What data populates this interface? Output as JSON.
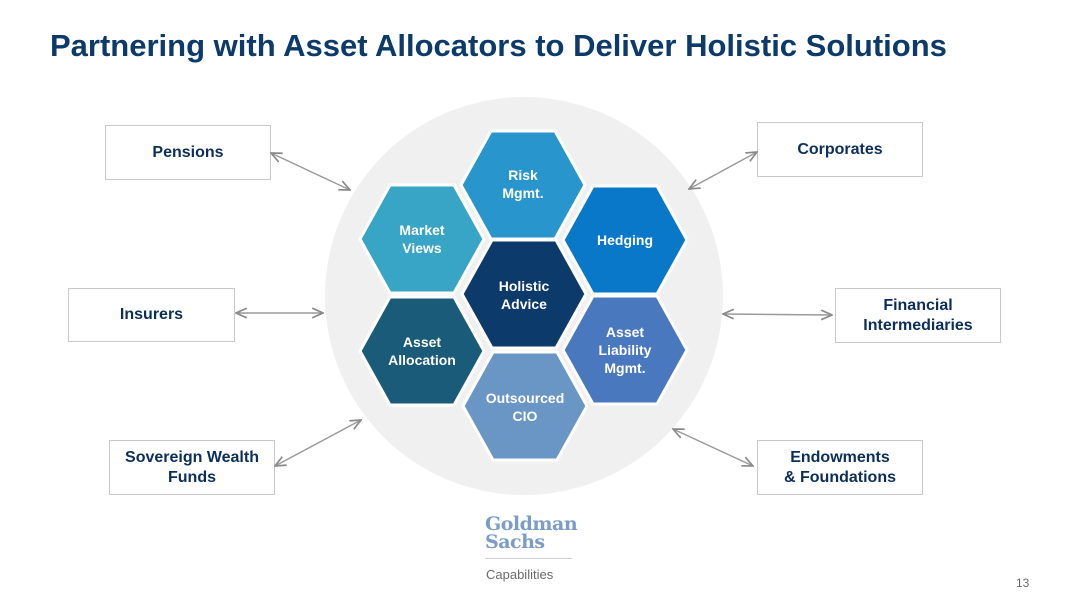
{
  "title": "Partnering with Asset Allocators to Deliver Holistic Solutions",
  "clients": {
    "pensions": "Pensions",
    "insurers": "Insurers",
    "sovereign_1": "Sovereign Wealth",
    "sovereign_2": "Funds",
    "corporates": "Corporates",
    "financial_1": "Financial",
    "financial_2": "Intermediaries",
    "endowments_1": "Endowments",
    "endowments_2": "& Foundations"
  },
  "capabilities": {
    "risk_1": "Risk",
    "risk_2": "Mgmt.",
    "market_1": "Market",
    "market_2": "Views",
    "hedging": "Hedging",
    "holistic_1": "Holistic",
    "holistic_2": "Advice",
    "allocation_1": "Asset",
    "allocation_2": "Allocation",
    "liability_1": "Asset",
    "liability_2": "Liability",
    "liability_3": "Mgmt.",
    "ocio_1": "Outsourced",
    "ocio_2": "CIO"
  },
  "colors": {
    "risk": "#2896cc",
    "market": "#38a4c6",
    "hedging": "#0a78c8",
    "holistic": "#0c3a6b",
    "allocation": "#1a5b7a",
    "liability": "#4a78bf",
    "ocio": "#6a96c6",
    "title": "#0c3a6b"
  },
  "footer": {
    "logo_line1": "Goldman",
    "logo_line2": "Sachs",
    "caption": "Capabilities",
    "page_number": "13"
  }
}
